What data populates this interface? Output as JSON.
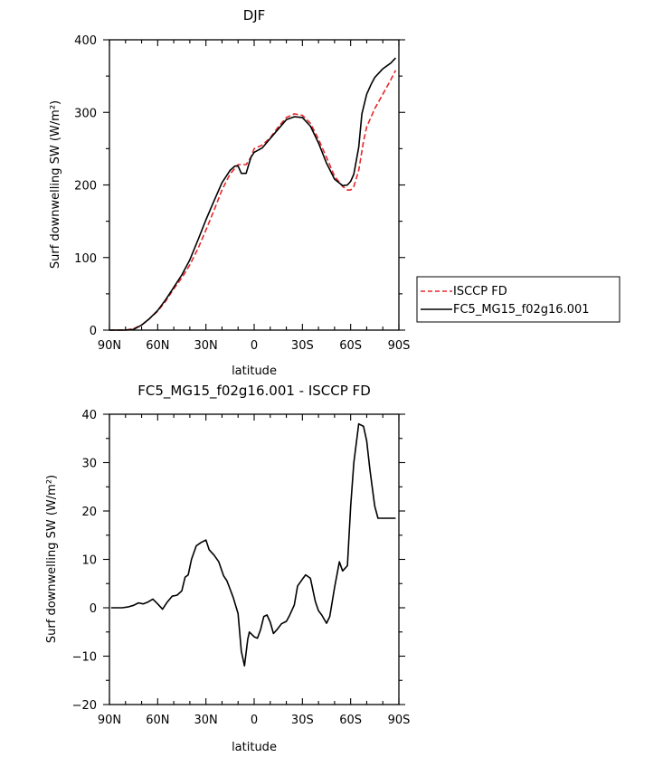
{
  "chart_data": [
    {
      "type": "line",
      "title": "DJF",
      "xlabel": "latitude",
      "ylabel": "Surf downwelling SW (W/m²)",
      "xlim": [
        90,
        -90
      ],
      "ylim": [
        0,
        400
      ],
      "x_ticks": [
        {
          "value": 90,
          "label": "90N"
        },
        {
          "value": 60,
          "label": "60N"
        },
        {
          "value": 30,
          "label": "30N"
        },
        {
          "value": 0,
          "label": "0"
        },
        {
          "value": -30,
          "label": "30S"
        },
        {
          "value": -60,
          "label": "60S"
        },
        {
          "value": -90,
          "label": "90S"
        }
      ],
      "y_ticks": [
        {
          "value": 0,
          "label": "0"
        },
        {
          "value": 100,
          "label": "100"
        },
        {
          "value": 200,
          "label": "200"
        },
        {
          "value": 300,
          "label": "300"
        },
        {
          "value": 400,
          "label": "400"
        }
      ],
      "legend_position": "right",
      "series": [
        {
          "name": "ISCCP FD",
          "color": "#e8262b",
          "dash": "dashed",
          "x": [
            90,
            80,
            75,
            70,
            65,
            60,
            55,
            50,
            45,
            40,
            35,
            30,
            25,
            20,
            15,
            10,
            5,
            2,
            0,
            -5,
            -10,
            -15,
            -20,
            -25,
            -30,
            -35,
            -40,
            -45,
            -50,
            -55,
            -58,
            -60,
            -62,
            -65,
            -68,
            -70,
            -75,
            -80,
            -85,
            -88
          ],
          "y": [
            0,
            0,
            2,
            7,
            16,
            26,
            40,
            57,
            72,
            90,
            112,
            138,
            165,
            193,
            215,
            228,
            228,
            238,
            250,
            255,
            265,
            280,
            293,
            298,
            296,
            285,
            263,
            238,
            212,
            198,
            193,
            193,
            198,
            220,
            260,
            280,
            305,
            325,
            345,
            358
          ]
        },
        {
          "name": "FC5_MG15_f02g16.001",
          "color": "#000000",
          "dash": "solid",
          "x": [
            90,
            80,
            75,
            70,
            65,
            60,
            55,
            50,
            45,
            40,
            35,
            30,
            25,
            20,
            15,
            12,
            10,
            8,
            5,
            2,
            0,
            -5,
            -10,
            -15,
            -20,
            -25,
            -30,
            -35,
            -40,
            -45,
            -50,
            -55,
            -58,
            -60,
            -62,
            -65,
            -67,
            -70,
            -73,
            -75,
            -80,
            -85,
            -88
          ],
          "y": [
            0,
            0,
            1,
            7,
            16,
            27,
            42,
            59,
            76,
            97,
            124,
            152,
            178,
            203,
            220,
            226,
            226,
            216,
            216,
            238,
            245,
            251,
            264,
            277,
            290,
            294,
            293,
            281,
            258,
            230,
            208,
            199,
            200,
            205,
            215,
            252,
            298,
            325,
            340,
            348,
            360,
            368,
            375
          ]
        }
      ]
    },
    {
      "type": "line",
      "title": "FC5_MG15_f02g16.001 - ISCCP FD",
      "xlabel": "latitude",
      "ylabel": "Surf downwelling SW (W/m²)",
      "xlim": [
        90,
        -90
      ],
      "ylim": [
        -20,
        40
      ],
      "x_ticks": [
        {
          "value": 90,
          "label": "90N"
        },
        {
          "value": 60,
          "label": "60N"
        },
        {
          "value": 30,
          "label": "30N"
        },
        {
          "value": 0,
          "label": "0"
        },
        {
          "value": -30,
          "label": "30S"
        },
        {
          "value": -60,
          "label": "60S"
        },
        {
          "value": -90,
          "label": "90S"
        }
      ],
      "y_ticks": [
        {
          "value": -20,
          "label": "−20"
        },
        {
          "value": -10,
          "label": "−10"
        },
        {
          "value": 0,
          "label": "0"
        },
        {
          "value": 10,
          "label": "10"
        },
        {
          "value": 20,
          "label": "20"
        },
        {
          "value": 30,
          "label": "30"
        },
        {
          "value": 40,
          "label": "40"
        }
      ],
      "series": [
        {
          "color": "#000000",
          "dash": "solid",
          "x": [
            89,
            82,
            78,
            75,
            72,
            69,
            66,
            63,
            60,
            57,
            54,
            51,
            48,
            45,
            43,
            41,
            39,
            36,
            33,
            30,
            28,
            25,
            22,
            19,
            17,
            15,
            13,
            10,
            8,
            6,
            4,
            3,
            0,
            -2,
            -4,
            -6,
            -8,
            -10,
            -12,
            -14,
            -17,
            -20,
            -22,
            -25,
            -27,
            -30,
            -32,
            -35,
            -38,
            -40,
            -42,
            -45,
            -47,
            -50,
            -53,
            -55,
            -58,
            -60,
            -62,
            -65,
            -68,
            -70,
            -72,
            -75,
            -77,
            -80,
            -83,
            -85,
            -88
          ],
          "y": [
            0,
            0,
            0.2,
            0.5,
            1,
            0.8,
            1.2,
            1.8,
            0.8,
            -0.3,
            1.2,
            2.4,
            2.6,
            3.5,
            6.3,
            6.8,
            10,
            12.8,
            13.5,
            14,
            12,
            10.9,
            9.5,
            6.6,
            5.6,
            3.9,
            2.1,
            -1.2,
            -9,
            -12,
            -6.5,
            -5,
            -6,
            -6.3,
            -4.5,
            -1.8,
            -1.5,
            -3,
            -5.3,
            -4.6,
            -3.3,
            -2.8,
            -1.6,
            0.6,
            4.5,
            5.9,
            6.8,
            6.1,
            1.3,
            -0.6,
            -1.5,
            -3.2,
            -1.8,
            4.2,
            9.5,
            7.6,
            8.7,
            21,
            30,
            38,
            37.5,
            34.5,
            28.5,
            21,
            18.5,
            18.5,
            18.5,
            18.5,
            18.5
          ]
        }
      ]
    }
  ]
}
